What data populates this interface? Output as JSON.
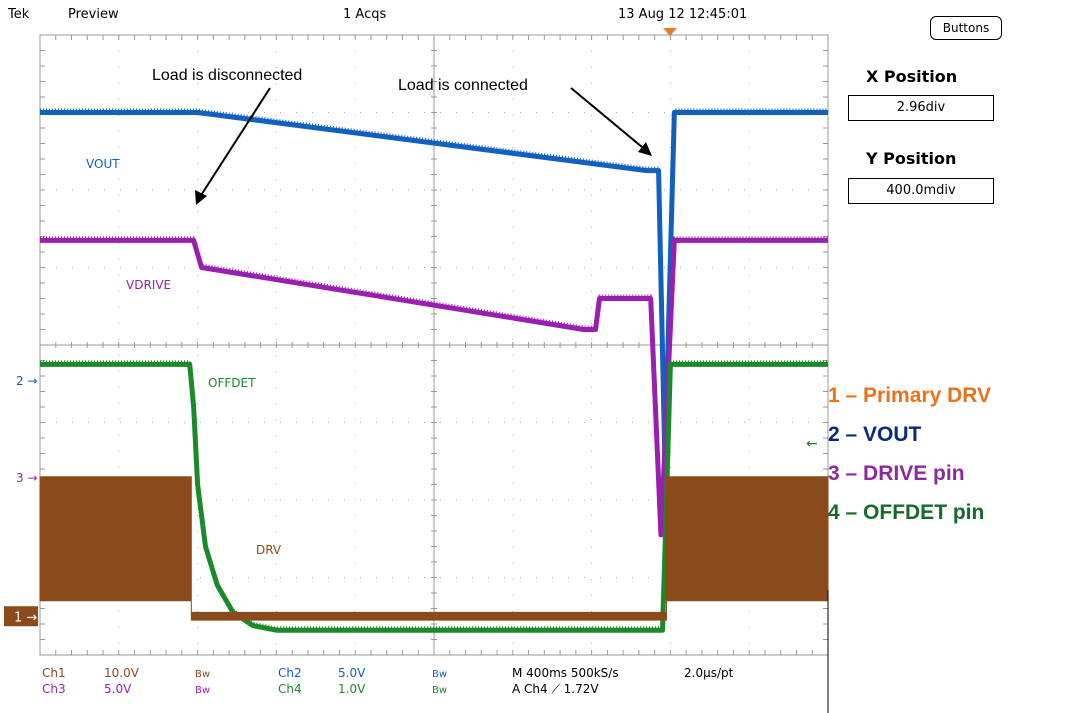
{
  "header": {
    "brand": "Tek",
    "mode": "Preview",
    "acqs": "1 Acqs",
    "datetime": "13 Aug 12 12:45:01"
  },
  "panel": {
    "buttons_label": "Buttons",
    "x_position_title": "X Position",
    "x_position_value": "2.96div",
    "y_position_title": "Y Position",
    "y_position_value": "400.0mdiv"
  },
  "annotations": {
    "disconnected": "Load is disconnected",
    "connected": "Load is connected"
  },
  "legend": [
    {
      "text": "1 – Primary DRV",
      "color": "#E8731A"
    },
    {
      "text": "2 – VOUT",
      "color": "#0A2A7A"
    },
    {
      "text": "3 – DRIVE pin",
      "color": "#8B2A9E"
    },
    {
      "text": "4 – OFFDET pin",
      "color": "#146B2A"
    }
  ],
  "footer": {
    "ch1_label": "Ch1",
    "ch1_scale": "10.0V",
    "ch1_bw": "Bw",
    "ch2_label": "Ch2",
    "ch2_scale": "5.0V",
    "ch2_bw": "Bw",
    "ch3_label": "Ch3",
    "ch3_scale": "5.0V",
    "ch3_bw": "Bw",
    "ch4_label": "Ch4",
    "ch4_scale": "1.0V",
    "ch4_bw": "Bw",
    "timebase": "M 400ms 500kS/s",
    "resolution": "2.0µs/pt",
    "trigger": "A  Ch4  ⟋  1.72V"
  },
  "chart_data": {
    "type": "line",
    "x_unit": "div",
    "y_unit": "div",
    "xlim": [
      0,
      10
    ],
    "ylim": [
      0,
      8
    ],
    "series": [
      {
        "name": "VOUT",
        "color": "#1060C0",
        "label_color": "#1060C0",
        "x": [
          0,
          2.0,
          7.7,
          7.85,
          7.93,
          8.05,
          10
        ],
        "y": [
          7.0,
          7.0,
          6.25,
          6.25,
          2.5,
          7.0,
          7.0
        ]
      },
      {
        "name": "VDRIVE",
        "color": "#9A1FB0",
        "label_color": "#9A1FB0",
        "x": [
          0,
          1.95,
          2.05,
          6.9,
          7.05,
          7.1,
          7.75,
          7.88,
          8.05,
          10
        ],
        "y": [
          5.35,
          5.35,
          5.0,
          4.2,
          4.2,
          4.6,
          4.6,
          1.55,
          5.35,
          5.35
        ]
      },
      {
        "name": "OFFDET",
        "color": "#1B8A2A",
        "label_color": "#1B8A2A",
        "x": [
          0,
          1.9,
          1.95,
          2.0,
          2.1,
          2.25,
          2.45,
          2.7,
          3.0,
          7.9,
          7.95,
          8.0,
          10
        ],
        "y": [
          3.75,
          3.75,
          3.2,
          2.2,
          1.4,
          0.9,
          0.55,
          0.38,
          0.32,
          0.32,
          2.0,
          3.75,
          3.75
        ]
      },
      {
        "name": "DRV",
        "color": "#8B4A1A",
        "label_color": "#8B4A1A",
        "x": [
          0,
          1.92,
          1.92,
          7.95,
          7.95,
          10
        ],
        "y_low": [
          0.7,
          0.7,
          0.45,
          0.45,
          0.7,
          0.7
        ],
        "y_high": [
          2.3,
          2.3,
          0.55,
          0.55,
          2.3,
          2.3
        ]
      }
    ],
    "ground_markers": [
      {
        "label": "1",
        "y": 0.5,
        "color": "#8B4A1A"
      },
      {
        "label": "2",
        "y": 3.55,
        "color": "#1060C0"
      },
      {
        "label": "3",
        "y": 2.3,
        "color": "#9A1FB0"
      }
    ],
    "grid": true
  }
}
